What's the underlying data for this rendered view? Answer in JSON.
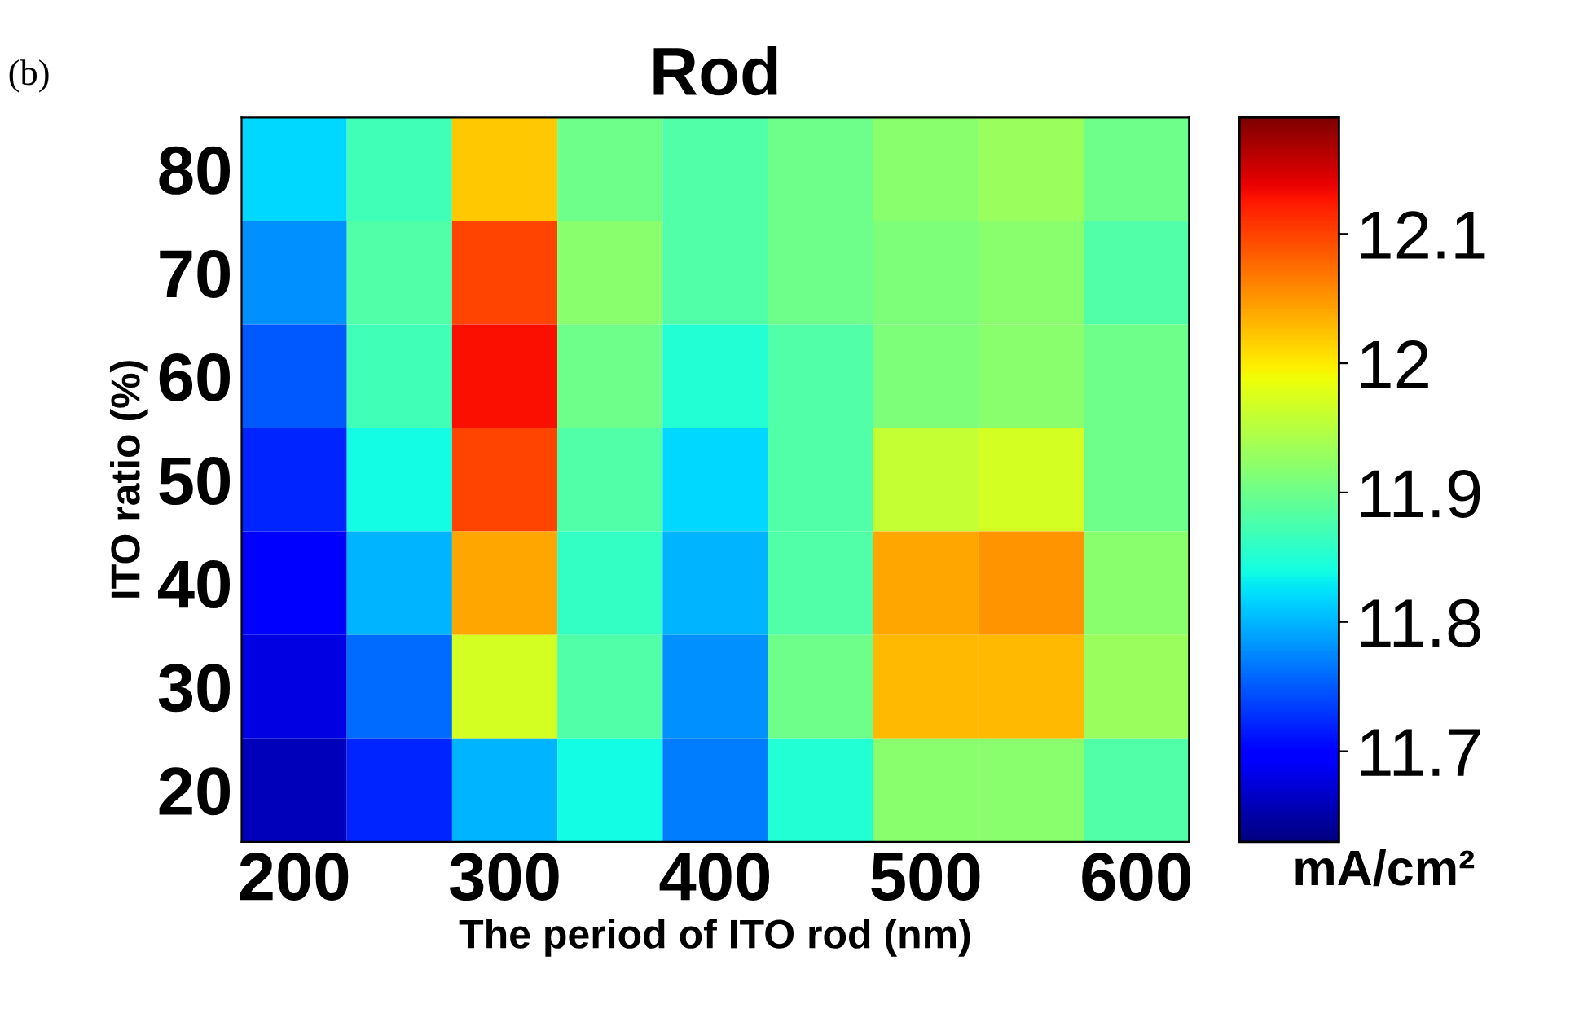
{
  "chart_data": {
    "type": "heatmap",
    "title": "Rod",
    "xlabel": "The period of ITO rod (nm)",
    "ylabel": "ITO ratio (%)",
    "clabel": "mA/cm²",
    "annotations": [
      "(b)"
    ],
    "categories": [
      "200",
      null,
      "300",
      null,
      "400",
      null,
      "500",
      null,
      "600"
    ],
    "y_categories": [
      "80",
      "70",
      "60",
      "50",
      "40",
      "30",
      "20"
    ],
    "cells": [
      [
        11.82,
        11.87,
        12.02,
        11.9,
        11.88,
        11.9,
        11.92,
        11.93,
        11.9
      ],
      [
        11.78,
        11.88,
        12.1,
        11.92,
        11.88,
        11.9,
        11.91,
        11.92,
        11.88
      ],
      [
        11.75,
        11.87,
        12.13,
        11.9,
        11.85,
        11.88,
        11.91,
        11.92,
        11.9
      ],
      [
        11.72,
        11.84,
        12.1,
        11.88,
        11.82,
        11.88,
        11.96,
        11.97,
        11.9
      ],
      [
        11.7,
        11.8,
        12.04,
        11.86,
        11.8,
        11.88,
        12.04,
        12.05,
        11.92
      ],
      [
        11.68,
        11.76,
        11.97,
        11.88,
        11.78,
        11.9,
        12.03,
        12.03,
        11.93
      ],
      [
        11.66,
        11.72,
        11.8,
        11.84,
        11.77,
        11.85,
        11.92,
        11.92,
        11.88
      ]
    ],
    "clim": [
      11.63,
      12.19
    ],
    "cticks": [
      11.7,
      11.8,
      11.9,
      12,
      12.1
    ]
  }
}
